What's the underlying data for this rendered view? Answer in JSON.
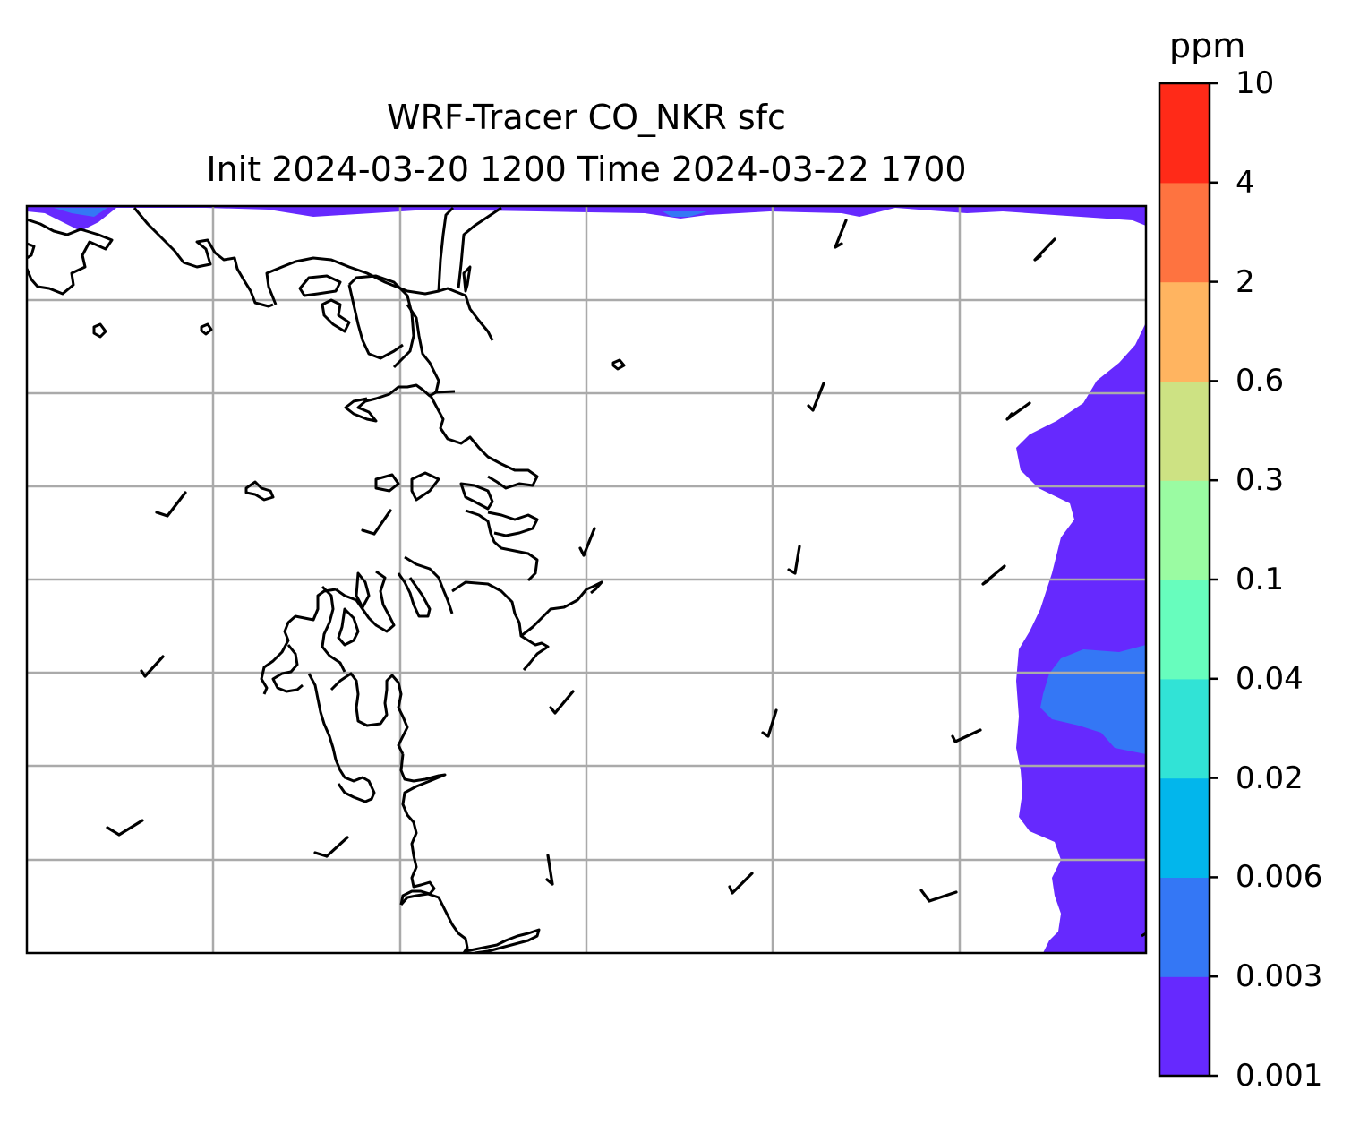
{
  "map": {
    "title_line1": "WRF-Tracer CO_NKR sfc",
    "title_line2": "Init 2024-03-20 1200 Time 2024-03-22 1700",
    "variable": "CO_NKR tracer surface concentration",
    "gridlines": true,
    "land_color": "#ffffff",
    "coastline_color": "#000000",
    "gridline_color": "#aaaaaa"
  },
  "colorbar": {
    "unit": "ppm",
    "orientation": "vertical",
    "placement": "right",
    "levels": [
      "0.001",
      "0.003",
      "0.006",
      "0.02",
      "0.04",
      "0.1",
      "0.3",
      "0.6",
      "2",
      "4",
      "10"
    ],
    "colors": [
      "#6629fe",
      "#3477f5",
      "#02b6ec",
      "#31e3d6",
      "#67fdbd",
      "#9afba2",
      "#cde283",
      "#ffb460",
      "#fe7340",
      "#ff2a18"
    ]
  },
  "icons": {
    "wind_barb": "wind-barb-icon"
  }
}
